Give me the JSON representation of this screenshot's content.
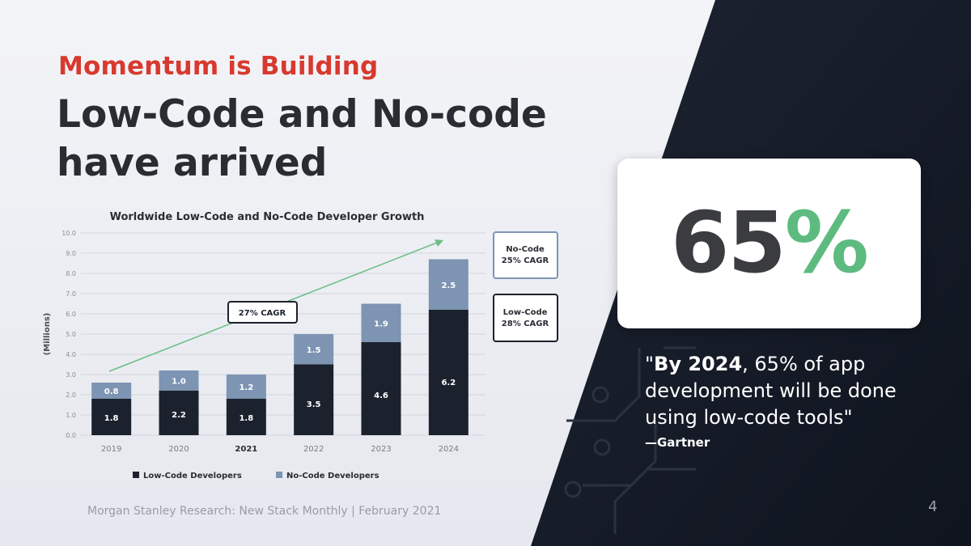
{
  "slide": {
    "kicker": "Momentum is Building",
    "headline_line1": "Low-Code and No-code",
    "headline_line2": "have arrived",
    "source": "Morgan Stanley Research: New Stack Monthly | February 2021",
    "page_number": "4"
  },
  "stat": {
    "number": "65",
    "percent_sign": "%",
    "quote_bold": "By 2024",
    "quote_open": "\"",
    "quote_rest": ", 65% of app development will be done using low-code tools\"",
    "attribution": "—Gartner"
  },
  "colors": {
    "red": "#d8392e",
    "dark_bar": "#1c222d",
    "light_bar": "#7d94b3",
    "arrow": "#6cbd86",
    "panel": "#141a26",
    "accent_green": "#5dbb7f"
  },
  "chart_data": {
    "type": "bar",
    "stacked": true,
    "title": "Worldwide Low-Code and No-Code Developer Growth",
    "ylabel": "(Millions)",
    "ylim": [
      0,
      10
    ],
    "y_ticks": [
      "0.0",
      "1.0",
      "2.0",
      "3.0",
      "4.0",
      "5.0",
      "6.0",
      "7.0",
      "8.0",
      "9.0",
      "10.0"
    ],
    "categories": [
      "2019",
      "2020",
      "2021",
      "2022",
      "2023",
      "2024"
    ],
    "series": [
      {
        "name": "Low-Code Developers",
        "values": [
          1.8,
          2.2,
          1.8,
          3.5,
          4.6,
          6.2
        ],
        "labels": [
          "1.8",
          "2.2",
          "1.8",
          "3.5",
          "4.6",
          "6.2"
        ],
        "color": "#1c222d"
      },
      {
        "name": "No-Code Developers",
        "values": [
          0.8,
          1.0,
          1.2,
          1.5,
          1.9,
          2.5
        ],
        "labels": [
          "0.8",
          "1.0",
          "1.2",
          "1.5",
          "1.9",
          "2.5"
        ],
        "color": "#7d94b3"
      }
    ],
    "grid": true,
    "legend": "bottom",
    "annotations": {
      "trend": "27% CAGR",
      "nocode_line1": "No-Code",
      "nocode_line2": "25% CAGR",
      "lowcode_line1": "Low-Code",
      "lowcode_line2": "28% CAGR"
    }
  }
}
